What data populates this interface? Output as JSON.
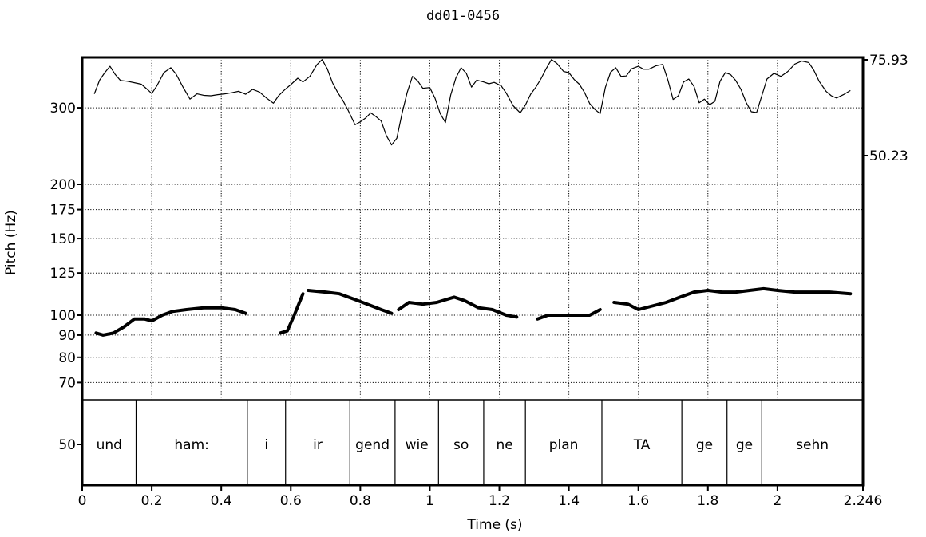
{
  "chart_data": {
    "type": "line",
    "title": "dd01-0456",
    "xlabel": "Time (s)",
    "ylabel": "Pitch (Hz)",
    "xlim": [
      0,
      2.246
    ],
    "grid": true,
    "x_ticks": [
      {
        "value": 0,
        "label": "0"
      },
      {
        "value": 0.2,
        "label": "0.2"
      },
      {
        "value": 0.4,
        "label": "0.4"
      },
      {
        "value": 0.6,
        "label": "0.6"
      },
      {
        "value": 0.8,
        "label": "0.8"
      },
      {
        "value": 1.0,
        "label": "1"
      },
      {
        "value": 1.2,
        "label": "1.2"
      },
      {
        "value": 1.4,
        "label": "1.4"
      },
      {
        "value": 1.6,
        "label": "1.6"
      },
      {
        "value": 1.8,
        "label": "1.8"
      },
      {
        "value": 2.0,
        "label": "2"
      },
      {
        "value": 2.246,
        "label": "2.246"
      }
    ],
    "pitch_ticks": [
      {
        "value": 300,
        "label": "300"
      },
      {
        "value": 200,
        "label": "200"
      },
      {
        "value": 175,
        "label": "175"
      },
      {
        "value": 150,
        "label": "150"
      },
      {
        "value": 125,
        "label": "125"
      },
      {
        "value": 100,
        "label": "100"
      },
      {
        "value": 90,
        "label": "90"
      },
      {
        "value": 80,
        "label": "80"
      },
      {
        "value": 70,
        "label": "70"
      },
      {
        "value": 50,
        "label": "50"
      }
    ],
    "intensity_ticks": [
      {
        "value": 75.93,
        "label": "75.93"
      },
      {
        "value": 50.23,
        "label": "50.23"
      }
    ],
    "words": [
      {
        "label": "und",
        "start": 0.0,
        "end": 0.155
      },
      {
        "label": "ham:",
        "start": 0.155,
        "end": 0.475
      },
      {
        "label": "i",
        "start": 0.475,
        "end": 0.585
      },
      {
        "label": "ir",
        "start": 0.585,
        "end": 0.77
      },
      {
        "label": "gend",
        "start": 0.77,
        "end": 0.9
      },
      {
        "label": "wie",
        "start": 0.9,
        "end": 1.025
      },
      {
        "label": "so",
        "start": 1.025,
        "end": 1.155
      },
      {
        "label": "ne",
        "start": 1.155,
        "end": 1.275
      },
      {
        "label": "plan",
        "start": 1.275,
        "end": 1.495
      },
      {
        "label": "TA",
        "start": 1.495,
        "end": 1.725
      },
      {
        "label": "ge",
        "start": 1.725,
        "end": 1.855
      },
      {
        "label": "ge",
        "start": 1.855,
        "end": 1.955
      },
      {
        "label": "sehn",
        "start": 1.955,
        "end": 2.246
      }
    ],
    "series": [
      {
        "name": "",
        "role": "pitch",
        "unit": "Hz",
        "segments": [
          [
            [
              0.04,
              91
            ],
            [
              0.06,
              90
            ],
            [
              0.09,
              91
            ],
            [
              0.12,
              94
            ],
            [
              0.15,
              98
            ],
            [
              0.18,
              98
            ],
            [
              0.2,
              97
            ],
            [
              0.23,
              100
            ],
            [
              0.26,
              102
            ],
            [
              0.3,
              103
            ],
            [
              0.35,
              104
            ],
            [
              0.4,
              104
            ],
            [
              0.44,
              103
            ],
            [
              0.47,
              101
            ]
          ],
          [
            [
              0.57,
              91
            ],
            [
              0.59,
              92
            ],
            [
              0.61,
              100
            ],
            [
              0.635,
              112
            ]
          ],
          [
            [
              0.65,
              114
            ],
            [
              0.7,
              113
            ],
            [
              0.74,
              112
            ],
            [
              0.78,
              109
            ],
            [
              0.82,
              106
            ],
            [
              0.86,
              103
            ],
            [
              0.89,
              101
            ]
          ],
          [
            [
              0.91,
              103
            ],
            [
              0.94,
              107
            ],
            [
              0.98,
              106
            ],
            [
              1.02,
              107
            ],
            [
              1.07,
              110
            ],
            [
              1.1,
              108
            ],
            [
              1.14,
              104
            ],
            [
              1.18,
              103
            ],
            [
              1.22,
              100
            ],
            [
              1.25,
              99
            ]
          ],
          [
            [
              1.31,
              98
            ],
            [
              1.34,
              100
            ],
            [
              1.38,
              100
            ],
            [
              1.42,
              100
            ],
            [
              1.46,
              100
            ],
            [
              1.49,
              103
            ]
          ],
          [
            [
              1.53,
              107
            ],
            [
              1.57,
              106
            ],
            [
              1.6,
              103
            ],
            [
              1.64,
              105
            ],
            [
              1.68,
              107
            ],
            [
              1.72,
              110
            ],
            [
              1.76,
              113
            ],
            [
              1.8,
              114
            ],
            [
              1.84,
              113
            ],
            [
              1.88,
              113
            ],
            [
              1.92,
              114
            ],
            [
              1.96,
              115
            ],
            [
              2.0,
              114
            ],
            [
              2.05,
              113
            ],
            [
              2.1,
              113
            ],
            [
              2.15,
              113
            ],
            [
              2.21,
              112
            ]
          ]
        ]
      },
      {
        "name": "",
        "role": "intensity",
        "unit": "dB",
        "points": [
          [
            0.035,
            66.8
          ],
          [
            0.05,
            70.5
          ],
          [
            0.065,
            72.5
          ],
          [
            0.08,
            74.2
          ],
          [
            0.095,
            72
          ],
          [
            0.11,
            70.4
          ],
          [
            0.13,
            70.2
          ],
          [
            0.15,
            69.8
          ],
          [
            0.17,
            69.4
          ],
          [
            0.19,
            67.8
          ],
          [
            0.2,
            66.9
          ],
          [
            0.215,
            69
          ],
          [
            0.235,
            72.5
          ],
          [
            0.255,
            73.8
          ],
          [
            0.27,
            72.1
          ],
          [
            0.29,
            68.6
          ],
          [
            0.31,
            65.4
          ],
          [
            0.33,
            66.8
          ],
          [
            0.35,
            66.4
          ],
          [
            0.37,
            66.3
          ],
          [
            0.39,
            66.6
          ],
          [
            0.41,
            66.8
          ],
          [
            0.43,
            67.1
          ],
          [
            0.45,
            67.5
          ],
          [
            0.47,
            66.7
          ],
          [
            0.49,
            68
          ],
          [
            0.51,
            67.3
          ],
          [
            0.53,
            65.7
          ],
          [
            0.55,
            64.3
          ],
          [
            0.565,
            66.3
          ],
          [
            0.58,
            67.7
          ],
          [
            0.6,
            69.3
          ],
          [
            0.62,
            71
          ],
          [
            0.635,
            70
          ],
          [
            0.655,
            71.5
          ],
          [
            0.675,
            74.6
          ],
          [
            0.69,
            76
          ],
          [
            0.705,
            73.5
          ],
          [
            0.72,
            69.8
          ],
          [
            0.735,
            67.2
          ],
          [
            0.75,
            65
          ],
          [
            0.765,
            62.4
          ],
          [
            0.785,
            58.5
          ],
          [
            0.8,
            59.3
          ],
          [
            0.815,
            60.3
          ],
          [
            0.83,
            61.7
          ],
          [
            0.845,
            60.7
          ],
          [
            0.86,
            59.5
          ],
          [
            0.875,
            55.6
          ],
          [
            0.89,
            53.1
          ],
          [
            0.905,
            54.9
          ],
          [
            0.92,
            61.5
          ],
          [
            0.935,
            67.2
          ],
          [
            0.95,
            71.5
          ],
          [
            0.965,
            70.3
          ],
          [
            0.98,
            68.3
          ],
          [
            1.0,
            68.5
          ],
          [
            1.015,
            65.6
          ],
          [
            1.03,
            61.5
          ],
          [
            1.045,
            59.1
          ],
          [
            1.06,
            66.5
          ],
          [
            1.075,
            71.1
          ],
          [
            1.09,
            73.8
          ],
          [
            1.105,
            72.3
          ],
          [
            1.12,
            68.6
          ],
          [
            1.135,
            70.5
          ],
          [
            1.155,
            70
          ],
          [
            1.17,
            69.5
          ],
          [
            1.185,
            69.9
          ],
          [
            1.205,
            69
          ],
          [
            1.22,
            67
          ],
          [
            1.24,
            63.6
          ],
          [
            1.26,
            61.7
          ],
          [
            1.275,
            63.8
          ],
          [
            1.29,
            66.7
          ],
          [
            1.305,
            68.6
          ],
          [
            1.32,
            70.9
          ],
          [
            1.335,
            73.6
          ],
          [
            1.35,
            76
          ],
          [
            1.365,
            75
          ],
          [
            1.385,
            72.8
          ],
          [
            1.4,
            72.5
          ],
          [
            1.415,
            70.7
          ],
          [
            1.43,
            69.4
          ],
          [
            1.445,
            67.2
          ],
          [
            1.46,
            64.2
          ],
          [
            1.475,
            62.6
          ],
          [
            1.49,
            61.5
          ],
          [
            1.505,
            68.5
          ],
          [
            1.52,
            72.6
          ],
          [
            1.535,
            73.8
          ],
          [
            1.55,
            71.5
          ],
          [
            1.565,
            71.6
          ],
          [
            1.58,
            73.5
          ],
          [
            1.6,
            74.2
          ],
          [
            1.615,
            73.4
          ],
          [
            1.63,
            73.4
          ],
          [
            1.65,
            74.3
          ],
          [
            1.67,
            74.7
          ],
          [
            1.685,
            70.5
          ],
          [
            1.7,
            65.3
          ],
          [
            1.715,
            66.3
          ],
          [
            1.73,
            70
          ],
          [
            1.745,
            70.8
          ],
          [
            1.76,
            68.8
          ],
          [
            1.775,
            64.4
          ],
          [
            1.79,
            65.4
          ],
          [
            1.805,
            63.9
          ],
          [
            1.82,
            64.8
          ],
          [
            1.835,
            70.2
          ],
          [
            1.85,
            72.5
          ],
          [
            1.865,
            72
          ],
          [
            1.88,
            70.4
          ],
          [
            1.895,
            68
          ],
          [
            1.91,
            64.5
          ],
          [
            1.925,
            62
          ],
          [
            1.94,
            61.8
          ],
          [
            1.955,
            66.3
          ],
          [
            1.97,
            70.8
          ],
          [
            1.99,
            72.3
          ],
          [
            2.01,
            71.5
          ],
          [
            2.03,
            72.8
          ],
          [
            2.05,
            74.8
          ],
          [
            2.07,
            75.6
          ],
          [
            2.09,
            75.2
          ],
          [
            2.105,
            73.1
          ],
          [
            2.12,
            70.2
          ],
          [
            2.14,
            67.5
          ],
          [
            2.155,
            66.3
          ],
          [
            2.17,
            65.7
          ],
          [
            2.19,
            66.6
          ],
          [
            2.21,
            67.7
          ]
        ]
      }
    ]
  }
}
